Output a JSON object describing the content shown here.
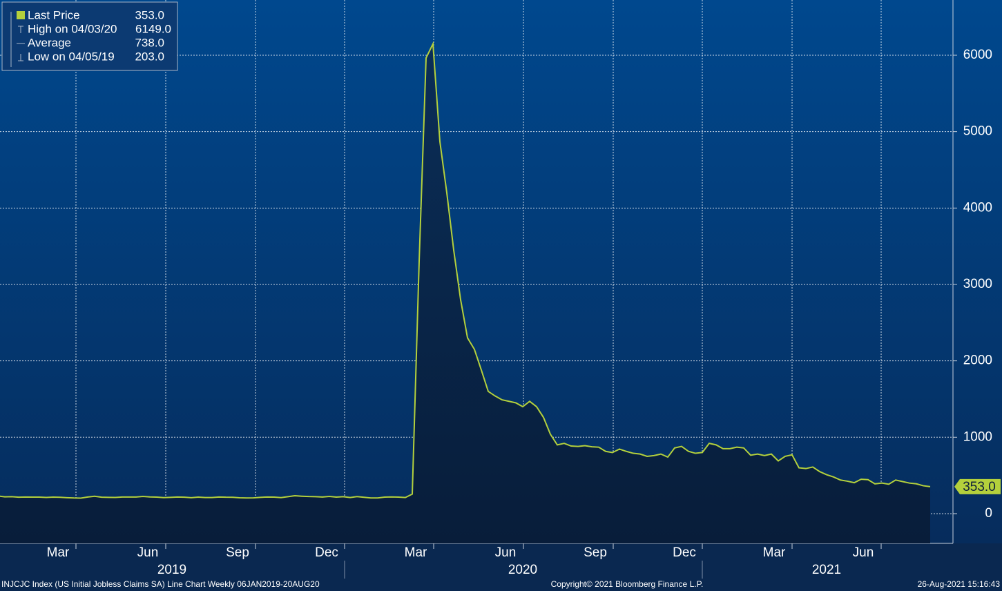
{
  "chart_data": {
    "type": "line",
    "values": [
      216,
      231,
      220,
      222,
      215,
      218,
      216,
      217,
      212,
      216,
      214,
      209,
      205,
      203,
      218,
      228,
      215,
      213,
      212,
      218,
      218,
      218,
      225,
      219,
      216,
      210,
      213,
      218,
      215,
      209,
      216,
      211,
      211,
      218,
      215,
      214,
      207,
      205,
      206,
      213,
      218,
      217,
      210,
      222,
      234,
      228,
      224,
      222,
      218,
      225,
      216,
      222,
      211,
      223,
      214,
      205,
      205,
      216,
      219,
      217,
      211,
      256,
      3307,
      5965,
      6149,
      4870,
      4200,
      3450,
      2800,
      2300,
      2150,
      1880,
      1600,
      1540,
      1490,
      1470,
      1450,
      1400,
      1470,
      1400,
      1260,
      1040,
      900,
      920,
      885,
      880,
      890,
      875,
      870,
      815,
      800,
      845,
      815,
      790,
      780,
      750,
      760,
      780,
      740,
      860,
      880,
      815,
      790,
      800,
      920,
      900,
      850,
      850,
      870,
      860,
      765,
      780,
      760,
      780,
      690,
      750,
      770,
      600,
      590,
      610,
      550,
      510,
      480,
      440,
      425,
      405,
      450,
      445,
      390,
      400,
      385,
      440,
      420,
      400,
      390,
      365,
      353
    ],
    "color": "#b4d03c",
    "ylim": [
      -389,
      6723
    ],
    "yticks": [
      0,
      1000,
      2000,
      3000,
      4000,
      5000,
      6000
    ],
    "grid": true,
    "xtick_labels": [
      "Mar",
      "Jun",
      "Sep",
      "Dec",
      "Mar",
      "Jun",
      "Sep",
      "Dec",
      "Mar",
      "Jun"
    ],
    "year_labels": [
      "2019",
      "2020",
      "2021"
    ],
    "legend": [
      {
        "label": "Last Price",
        "value": "353.0"
      },
      {
        "label": "High on 04/03/20",
        "value": "6149.0"
      },
      {
        "label": "Average",
        "value": "738.0"
      },
      {
        "label": "Low on 04/05/19",
        "value": "203.0"
      }
    ],
    "last_price_tag": "353.0",
    "footer": {
      "left": "INJCJC Index (US Initial Jobless Claims SA) Line Chart  Weekly 06JAN2019-20AUG20",
      "center": "Copyright© 2021 Bloomberg Finance L.P.",
      "right": "26-Aug-2021 15:16:43"
    }
  }
}
